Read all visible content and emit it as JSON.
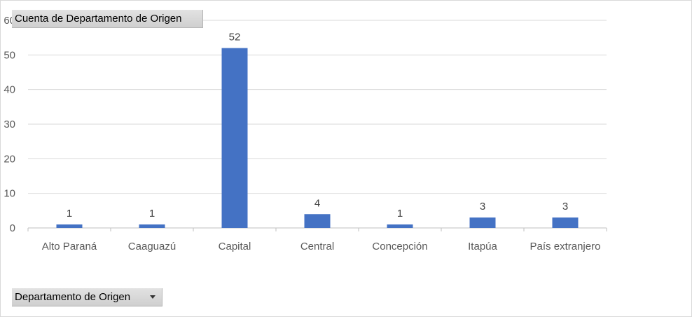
{
  "value_field_button": {
    "label": "Cuenta de Departamento de Origen"
  },
  "axis_field_button": {
    "label": "Departamento de Origen",
    "icon": "dropdown-arrow-icon"
  },
  "colors": {
    "bar": "#4472c4",
    "gridline": "#d9d9d9",
    "axis": "#bfbfbf"
  },
  "chart_data": {
    "type": "bar",
    "title": "",
    "xlabel": "",
    "ylabel": "",
    "categories": [
      "Alto Paraná",
      "Caaguazú",
      "Capital",
      "Central",
      "Concepción",
      "Itapúa",
      "País extranjero"
    ],
    "values": [
      1,
      1,
      52,
      4,
      1,
      3,
      3
    ],
    "data_labels": [
      "1",
      "1",
      "52",
      "4",
      "1",
      "3",
      "3"
    ],
    "ylim": [
      0,
      60
    ],
    "yticks": [
      0,
      10,
      20,
      30,
      40,
      50,
      60
    ],
    "ytick_labels": [
      "0",
      "10",
      "20",
      "30",
      "40",
      "50",
      "60"
    ],
    "grid": true,
    "legend": "none"
  }
}
